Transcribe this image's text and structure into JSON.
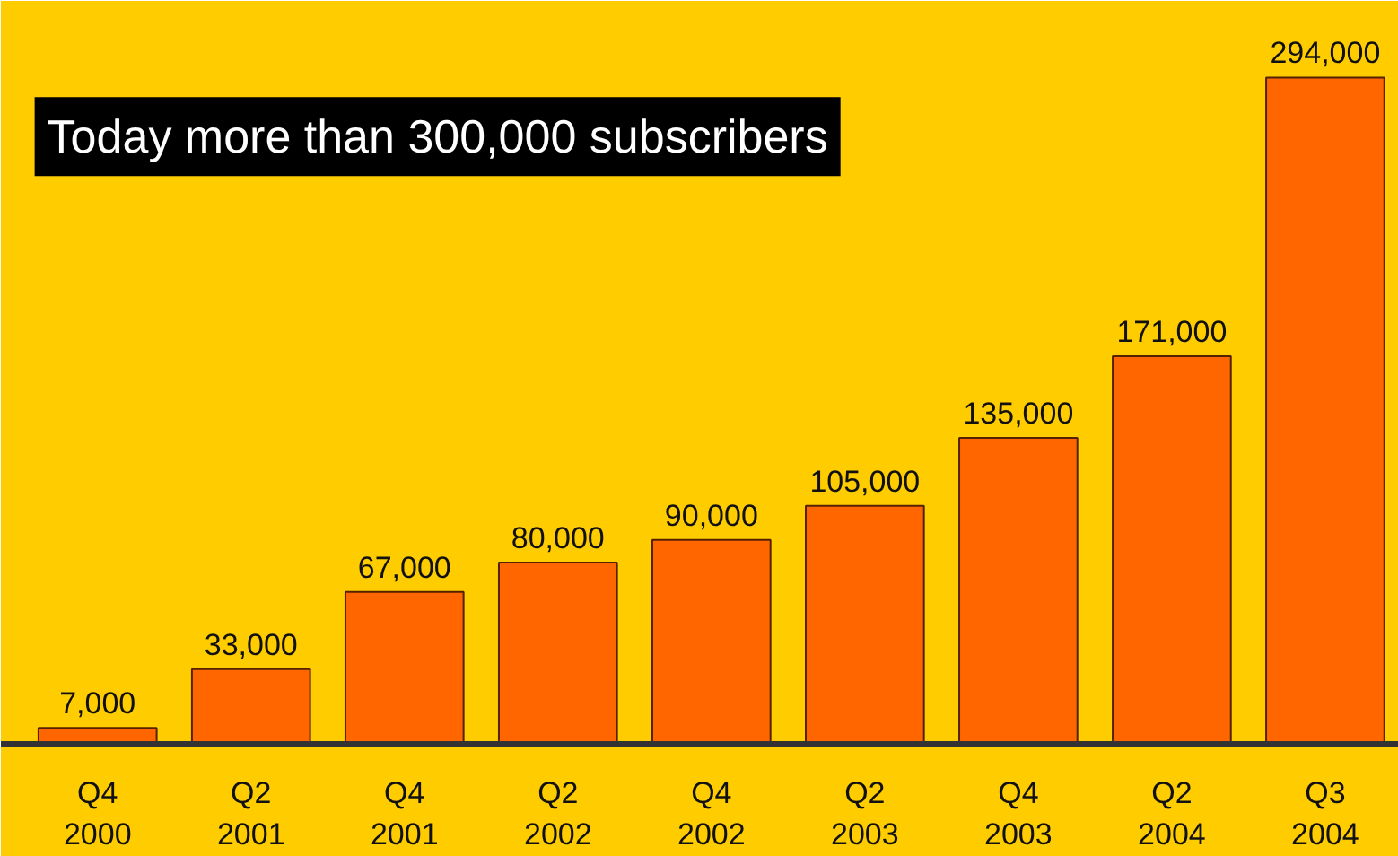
{
  "chart_data": {
    "type": "bar",
    "title": "Today more than 300,000 subscribers",
    "categories": [
      "Q4\n2000",
      "Q2\n2001",
      "Q4\n2001",
      "Q2\n2002",
      "Q4\n2002",
      "Q2\n2003",
      "Q4\n2003",
      "Q2\n2004",
      "Q3\n2004"
    ],
    "values": [
      7000,
      33000,
      67000,
      80000,
      90000,
      105000,
      135000,
      171000,
      294000
    ],
    "value_labels": [
      "7,000",
      "33,000",
      "67,000",
      "80,000",
      "90,000",
      "105,000",
      "135,000",
      "171,000",
      "294,000"
    ],
    "color": "#ff6600",
    "grid": false
  }
}
